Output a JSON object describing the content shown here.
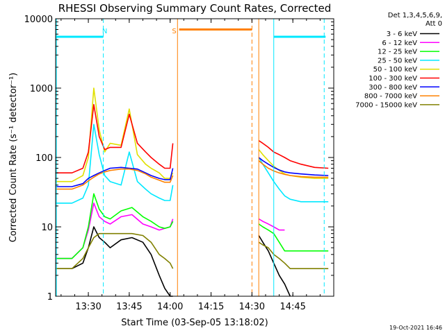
{
  "chart_data": {
    "type": "line",
    "title": "RHESSI Observing Summary Count Rates, Corrected",
    "xlabel": "Start Time (03-Sep-05 13:18:02)",
    "ylabel": "Corrected Count Rate (s⁻¹ detector⁻¹)",
    "x_unit": "minutes after 13:18:02 (03-Sep-05)",
    "xlim": [
      0,
      102
    ],
    "ylim": [
      1,
      10000
    ],
    "y_scale": "log",
    "x_ticks": [
      {
        "label": "13:30",
        "value": 12
      },
      {
        "label": "13:45",
        "value": 27
      },
      {
        "label": "14:00",
        "value": 42
      },
      {
        "label": "14:15",
        "value": 57
      },
      {
        "label": "14:30",
        "value": 72
      },
      {
        "label": "14:45",
        "value": 87
      }
    ],
    "y_ticks": [
      {
        "label": "1",
        "value": 1
      },
      {
        "label": "10",
        "value": 10
      },
      {
        "label": "100",
        "value": 100
      },
      {
        "label": "1000",
        "value": 1000
      },
      {
        "label": "10000",
        "value": 10000
      }
    ],
    "legend_header": [
      "Det 1,3,4,5,6,9,",
      "Att 0"
    ],
    "legend_position": "right",
    "annotations": [
      {
        "text": "N",
        "x": 18,
        "color": "#00e8ff"
      },
      {
        "text": "S",
        "x": 43.5,
        "color": "#ff8000"
      }
    ],
    "time_bars": [
      {
        "name": "night",
        "color": "#00e8ff",
        "y": 5500,
        "segments": [
          [
            0,
            17.5
          ],
          [
            80,
            99
          ]
        ]
      },
      {
        "name": "saa",
        "color": "#ff8000",
        "y": 7000,
        "segments": [
          [
            45.3,
            72
          ]
        ]
      }
    ],
    "vertical_lines": [
      {
        "x": 0.3,
        "color": "#00e8ff",
        "style": "solid"
      },
      {
        "x": 17.5,
        "color": "#00e8ff",
        "style": "dashed"
      },
      {
        "x": 44.7,
        "color": "#ff8000",
        "style": "solid"
      },
      {
        "x": 72,
        "color": "#ff8000",
        "style": "dashed"
      },
      {
        "x": 74.5,
        "color": "#ff8000",
        "style": "solid"
      },
      {
        "x": 80,
        "color": "#00e8ff",
        "style": "solid"
      },
      {
        "x": 98.5,
        "color": "#00e8ff",
        "style": "dashed"
      }
    ],
    "series": [
      {
        "name": "3 - 6 keV",
        "color": "#000000",
        "segments": [
          {
            "x": [
              0,
              6,
              10,
              12,
              14,
              16,
              18,
              20,
              24,
              28,
              32,
              35,
              38,
              40,
              42,
              43
            ],
            "y": [
              2.5,
              2.5,
              3,
              5,
              10,
              7,
              6,
              5,
              6.5,
              7,
              6,
              4,
              2,
              1.3,
              1,
              1
            ]
          },
          {
            "x": [
              74.5,
              76,
              78,
              80,
              82,
              84,
              86
            ],
            "y": [
              7.5,
              6,
              4.5,
              3,
              2,
              1.5,
              1
            ]
          }
        ]
      },
      {
        "name": "6 - 12 keV",
        "color": "#ff00ff",
        "segments": [
          {
            "x": [
              0,
              6,
              10,
              12,
              14,
              16,
              18,
              20,
              24,
              28,
              32,
              35,
              38,
              40,
              42,
              43
            ],
            "y": [
              3.5,
              3.5,
              5,
              9,
              22,
              14,
              12,
              11,
              14,
              15,
              11,
              10,
              9,
              9.5,
              10,
              13
            ]
          },
          {
            "x": [
              74.5,
              76,
              78,
              80,
              82,
              84
            ],
            "y": [
              13,
              12,
              11,
              10,
              9,
              9
            ]
          }
        ]
      },
      {
        "name": "12 - 25 keV",
        "color": "#00ff00",
        "segments": [
          {
            "x": [
              0,
              6,
              10,
              12,
              14,
              16,
              18,
              20,
              24,
              28,
              32,
              35,
              38,
              40,
              42,
              43
            ],
            "y": [
              3.5,
              3.5,
              5,
              10,
              30,
              18,
              14,
              13,
              17,
              19,
              14,
              12,
              10,
              9.5,
              10,
              12
            ]
          },
          {
            "x": [
              74.5,
              76,
              78,
              80,
              82,
              84,
              86,
              90,
              95,
              100
            ],
            "y": [
              11,
              10,
              9,
              8,
              6,
              4.5,
              4.5,
              4.5,
              4.5,
              4.5
            ]
          }
        ]
      },
      {
        "name": "25 - 50 keV",
        "color": "#00e8ff",
        "segments": [
          {
            "x": [
              0,
              6,
              10,
              12,
              14,
              16,
              18,
              20,
              24,
              27,
              30,
              33,
              35,
              38,
              40,
              42,
              43
            ],
            "y": [
              22,
              22,
              26,
              40,
              300,
              110,
              55,
              45,
              40,
              120,
              45,
              35,
              30,
              26,
              24,
              24,
              40
            ]
          },
          {
            "x": [
              74.5,
              76,
              78,
              80,
              82,
              84,
              86,
              90,
              95,
              100
            ],
            "y": [
              100,
              80,
              60,
              45,
              35,
              28,
              25,
              23,
              23,
              23
            ]
          }
        ]
      },
      {
        "name": "50 - 100 keV",
        "color": "#e0e000",
        "segments": [
          {
            "x": [
              0,
              6,
              10,
              12,
              14,
              16,
              18,
              20,
              24,
              27,
              30,
              33,
              35,
              38,
              40,
              42,
              43
            ],
            "y": [
              45,
              45,
              55,
              100,
              1000,
              250,
              120,
              160,
              150,
              500,
              110,
              80,
              70,
              60,
              50,
              50,
              60
            ]
          },
          {
            "x": [
              74.5,
              76,
              78,
              80,
              82,
              84,
              86,
              90,
              95,
              100
            ],
            "y": [
              130,
              110,
              90,
              75,
              65,
              58,
              55,
              52,
              50,
              50
            ]
          }
        ]
      },
      {
        "name": "100 - 300 keV",
        "color": "#ff0000",
        "segments": [
          {
            "x": [
              0,
              6,
              10,
              12,
              14,
              16,
              18,
              20,
              24,
              27,
              30,
              33,
              35,
              38,
              40,
              42,
              43
            ],
            "y": [
              60,
              60,
              70,
              120,
              580,
              200,
              130,
              140,
              140,
              420,
              160,
              120,
              100,
              80,
              70,
              70,
              160
            ]
          },
          {
            "x": [
              74.5,
              76,
              78,
              80,
              82,
              84,
              86,
              90,
              95,
              100
            ],
            "y": [
              175,
              160,
              140,
              120,
              110,
              100,
              90,
              80,
              72,
              70
            ]
          }
        ]
      },
      {
        "name": "300 - 800 keV",
        "color": "#0000ff",
        "segments": [
          {
            "x": [
              0,
              6,
              10,
              12,
              14,
              16,
              18,
              20,
              24,
              27,
              30,
              33,
              35,
              38,
              40,
              42,
              43
            ],
            "y": [
              38,
              38,
              42,
              50,
              55,
              60,
              65,
              70,
              72,
              70,
              68,
              60,
              55,
              50,
              48,
              48,
              70
            ]
          },
          {
            "x": [
              74.5,
              76,
              78,
              80,
              82,
              84,
              86,
              90,
              95,
              100
            ],
            "y": [
              100,
              90,
              80,
              72,
              66,
              62,
              60,
              58,
              56,
              55
            ]
          }
        ]
      },
      {
        "name": "800 - 7000 keV",
        "color": "#ff8000",
        "segments": [
          {
            "x": [
              0,
              6,
              10,
              12,
              14,
              16,
              18,
              20,
              24,
              27,
              30,
              33,
              35,
              38,
              40,
              42,
              43
            ],
            "y": [
              35,
              35,
              40,
              46,
              52,
              58,
              62,
              65,
              68,
              68,
              65,
              58,
              52,
              47,
              44,
              44,
              55
            ]
          },
          {
            "x": [
              74.5,
              76,
              78,
              80,
              82,
              84,
              86,
              90,
              95,
              100
            ],
            "y": [
              90,
              80,
              70,
              64,
              60,
              57,
              55,
              53,
              52,
              52
            ]
          }
        ]
      },
      {
        "name": "7000 - 15000 keV",
        "color": "#808000",
        "segments": [
          {
            "x": [
              0,
              6,
              10,
              12,
              14,
              16,
              18,
              20,
              24,
              28,
              32,
              35,
              38,
              40,
              42,
              43
            ],
            "y": [
              2.5,
              2.5,
              3.5,
              5,
              7,
              8,
              8,
              8,
              8,
              8,
              7.5,
              6,
              4,
              3.5,
              3,
              2.5
            ]
          },
          {
            "x": [
              74.5,
              76,
              78,
              80,
              82,
              84,
              86,
              90,
              95,
              100
            ],
            "y": [
              6,
              5.5,
              5,
              4,
              3.5,
              3,
              2.5,
              2.5,
              2.5,
              2.5
            ]
          }
        ]
      }
    ]
  },
  "footer": {
    "date_stamp": "19-Oct-2021 16:46"
  }
}
